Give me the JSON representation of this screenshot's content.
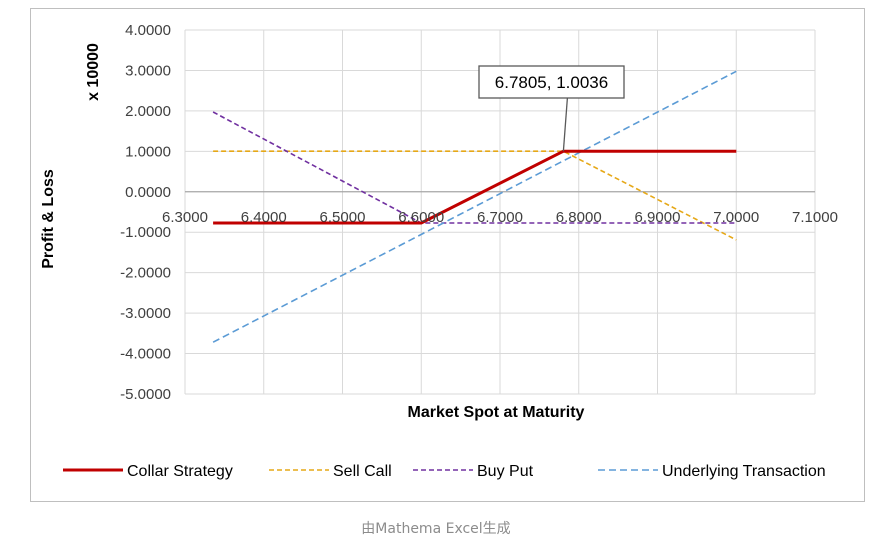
{
  "caption": "由Mathema Excel生成",
  "chart_data": {
    "type": "line",
    "title": "",
    "xlabel": "Market Spot at Maturity",
    "ylabel": "Profit & Loss",
    "y_multiplier_label": "x 10000",
    "xlim": [
      6.3,
      7.1
    ],
    "ylim": [
      -5,
      4
    ],
    "x_ticks": [
      "6.3000",
      "6.4000",
      "6.5000",
      "6.6000",
      "6.7000",
      "6.8000",
      "6.9000",
      "7.0000",
      "7.1000"
    ],
    "y_ticks": [
      "4.0000",
      "3.0000",
      "2.0000",
      "1.0000",
      "0.0000",
      "-1.0000",
      "-2.0000",
      "-3.0000",
      "-4.0000",
      "-5.0000"
    ],
    "grid": true,
    "legend_position": "bottom",
    "series": [
      {
        "name": "Collar Strategy",
        "color": "#c00000",
        "dash": "solid",
        "points": [
          [
            6.3357,
            -0.7715
          ],
          [
            6.6,
            -0.7715
          ],
          [
            6.7805,
            1.0036
          ],
          [
            7.0,
            1.0036
          ]
        ]
      },
      {
        "name": "Sell Call",
        "color": "#e6a817",
        "dash": "dashed",
        "points": [
          [
            6.3357,
            1.0036
          ],
          [
            6.7805,
            1.0036
          ],
          [
            7.0,
            -1.19
          ]
        ]
      },
      {
        "name": "Buy Put",
        "color": "#7030a0",
        "dash": "dashed",
        "points": [
          [
            6.3357,
            1.9715
          ],
          [
            6.6,
            -0.7715
          ],
          [
            7.0,
            -0.7715
          ]
        ]
      },
      {
        "name": "Underlying Transaction",
        "color": "#5b9bd5",
        "dash": "dashed",
        "points": [
          [
            6.3357,
            -3.72
          ],
          [
            7.0,
            2.98
          ]
        ]
      }
    ],
    "annotation": {
      "text": "6.7805, 1.0036",
      "x": 6.7805,
      "y": 1.0036
    }
  }
}
